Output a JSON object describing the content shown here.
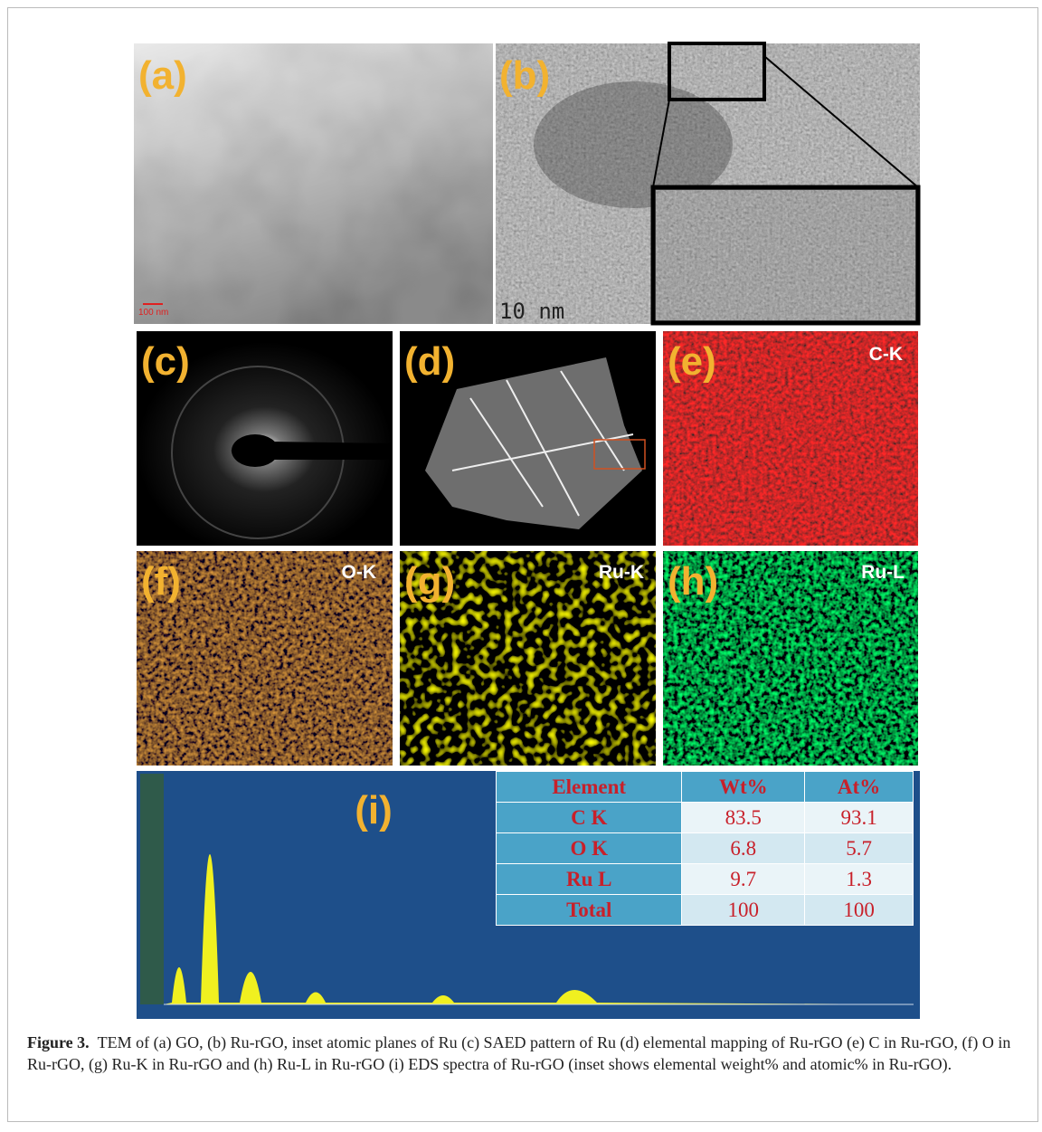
{
  "panels": [
    {
      "label": "(a)",
      "scale": "100 nm"
    },
    {
      "label": "(b)",
      "scale": "10 nm"
    },
    {
      "label": "(c)"
    },
    {
      "label": "(d)"
    },
    {
      "label": "(e)",
      "element": "C-K"
    },
    {
      "label": "(f)",
      "element": "O-K"
    },
    {
      "label": "(g)",
      "element": "Ru-K"
    },
    {
      "label": "(h)",
      "element": "Ru-L"
    },
    {
      "label": "(i)"
    }
  ],
  "table": {
    "header": [
      "Element",
      "Wt%",
      "At%"
    ],
    "rows": [
      [
        "C K",
        83.5,
        93.1
      ],
      [
        "O K",
        6.8,
        5.7
      ],
      [
        "Ru L",
        9.7,
        1.3
      ],
      [
        "Total",
        100,
        100
      ]
    ]
  },
  "caption": {
    "label": "Figure 3.",
    "text": "TEM of (a) GO, (b) Ru-rGO, inset atomic planes of Ru (c) SAED pattern of Ru (d) elemental mapping of Ru-rGO (e) C in Ru-rGO, (f) O in Ru-rGO, (g) Ru-K in Ru-rGO and (h) Ru-L in Ru-rGO (i) EDS spectra of Ru-rGO (inset shows elemental weight% and atomic% in Ru-rGO)."
  }
}
